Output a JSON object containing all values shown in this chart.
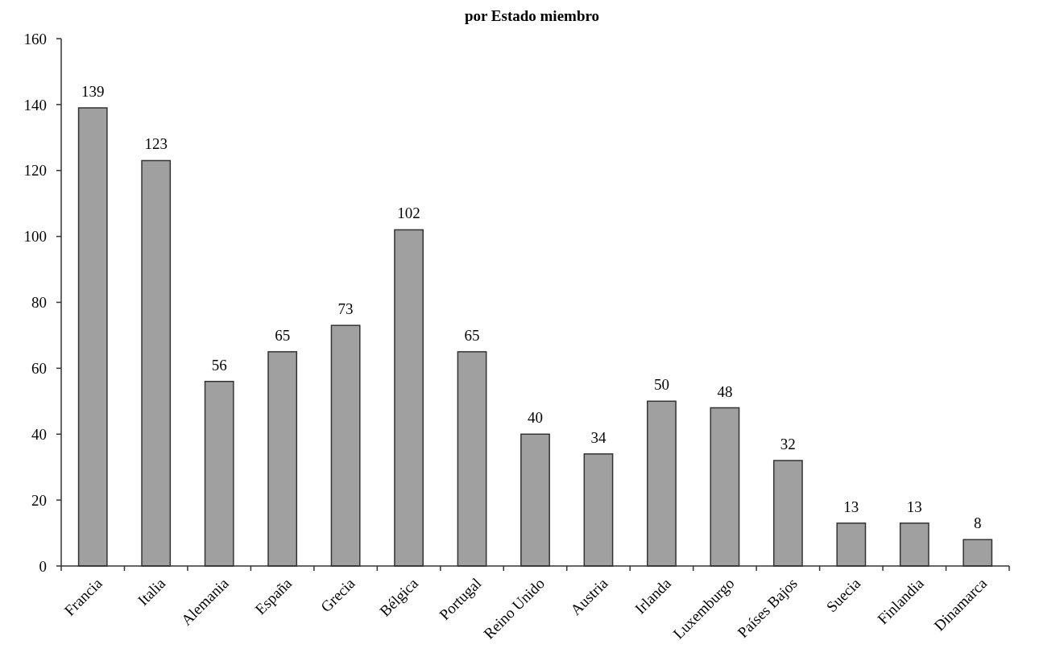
{
  "chart_data": {
    "type": "bar",
    "title": "por Estado miembro",
    "categories": [
      "Francia",
      "Italia",
      "Alemania",
      "España",
      "Grecia",
      "Bélgica",
      "Portugal",
      "Reino Unido",
      "Austria",
      "Irlanda",
      "Luxemburgo",
      "Países Bajos",
      "Suecia",
      "Finlandia",
      "Dinamarca"
    ],
    "values": [
      139,
      123,
      56,
      65,
      73,
      102,
      65,
      40,
      34,
      50,
      48,
      32,
      13,
      13,
      8
    ],
    "color": "#a0a0a0",
    "data_labels": true,
    "ylim": [
      0,
      160
    ],
    "yticks": [
      0,
      20,
      40,
      60,
      80,
      100,
      120,
      140,
      160
    ],
    "grid": false
  }
}
